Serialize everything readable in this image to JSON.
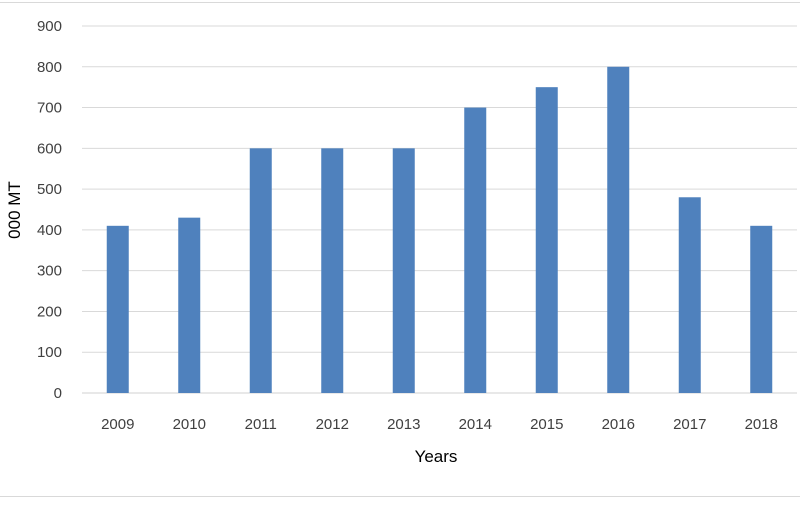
{
  "chart_data": {
    "type": "bar",
    "title": "",
    "xlabel": "Years",
    "ylabel": "000 MT",
    "categories": [
      "2009",
      "2010",
      "2011",
      "2012",
      "2013",
      "2014",
      "2015",
      "2016",
      "2017",
      "2018"
    ],
    "values": [
      410,
      430,
      600,
      600,
      600,
      700,
      750,
      800,
      480,
      410
    ],
    "ylim": [
      0,
      900
    ],
    "yticks": [
      "0",
      "100",
      "200",
      "300",
      "400",
      "500",
      "600",
      "700",
      "800",
      "900"
    ],
    "grid": "horizontal",
    "legend": "none",
    "colors": {
      "bar": "#4f81bd",
      "grid": "#d9d9d9",
      "tick_text": "#404040"
    }
  }
}
